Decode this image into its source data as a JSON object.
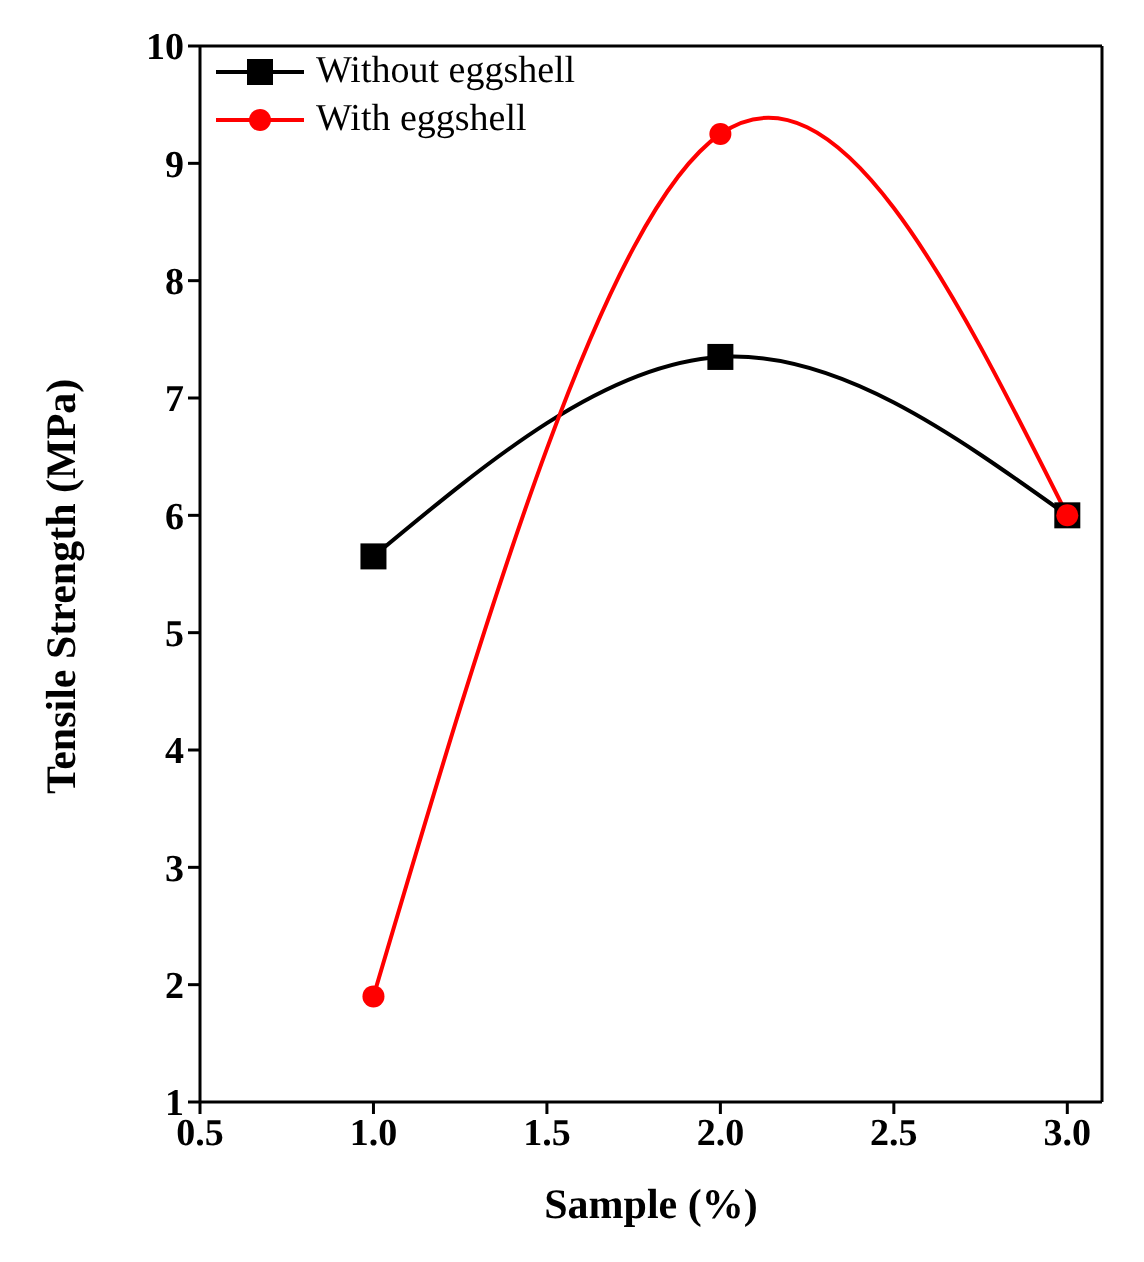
{
  "chart_data": {
    "type": "line",
    "xlabel": "Sample (%)",
    "ylabel": "Tensile Strength (MPa)",
    "x": [
      1,
      2,
      3
    ],
    "series": [
      {
        "name": "Without eggshell",
        "color": "#000000",
        "marker": "square",
        "values": [
          5.65,
          7.35,
          6.0
        ]
      },
      {
        "name": "With eggshell",
        "color": "#ff0000",
        "marker": "circle",
        "values": [
          1.9,
          9.25,
          6.0
        ]
      }
    ],
    "xlim": [
      0.5,
      3.1
    ],
    "xticks": [
      {
        "value": 0.5,
        "label": "0.5"
      },
      {
        "value": 1,
        "label": "1.0"
      },
      {
        "value": 1.5,
        "label": "1.5"
      },
      {
        "value": 2,
        "label": "2.0"
      },
      {
        "value": 2.5,
        "label": "2.5"
      },
      {
        "value": 3,
        "label": "3.0"
      }
    ],
    "ylim": [
      1,
      10
    ],
    "yticks": [
      1,
      2,
      3,
      4,
      5,
      6,
      7,
      8,
      9,
      10
    ],
    "grid": false,
    "legend": "top left",
    "line_style": "solid"
  }
}
